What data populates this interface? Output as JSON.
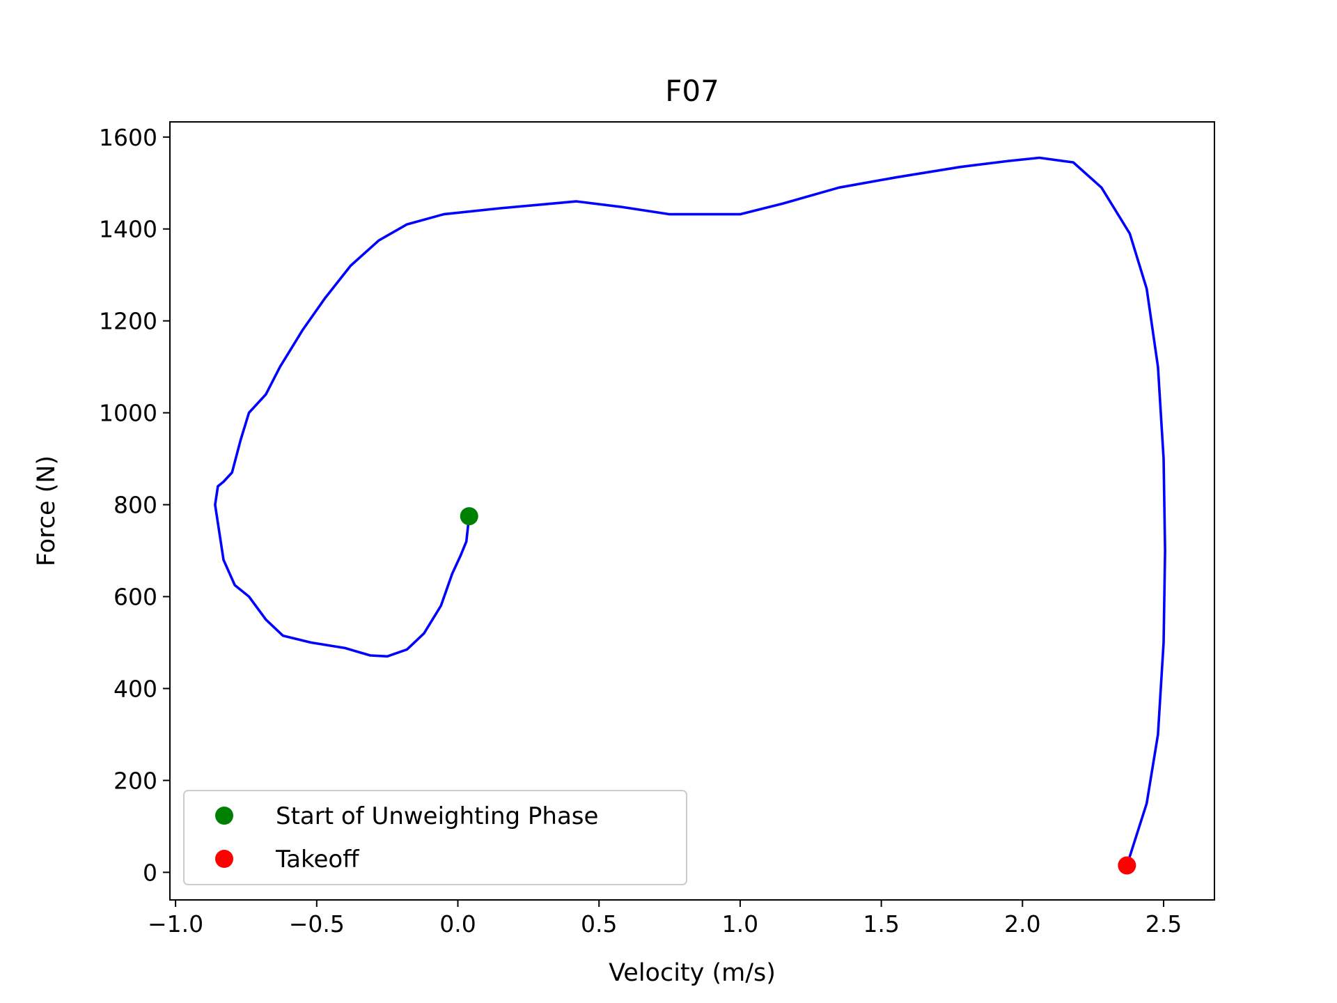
{
  "chart_data": {
    "type": "line",
    "title": "F07",
    "xlabel": "Velocity (m/s)",
    "ylabel": "Force (N)",
    "xlim": [
      -1.02,
      2.68
    ],
    "ylim": [
      -60,
      1633
    ],
    "xticks": [
      -1.0,
      -0.5,
      0.0,
      0.5,
      1.0,
      1.5,
      2.0,
      2.5
    ],
    "xtick_labels": [
      "−1.0",
      "−0.5",
      "0.0",
      "0.5",
      "1.0",
      "1.5",
      "2.0",
      "2.5"
    ],
    "yticks": [
      0,
      200,
      400,
      600,
      800,
      1000,
      1200,
      1400,
      1600
    ],
    "ytick_labels": [
      "0",
      "200",
      "400",
      "600",
      "800",
      "1000",
      "1200",
      "1400",
      "1600"
    ],
    "grid": false,
    "legend_position": "lower left",
    "series": [
      {
        "color": "#0000ff",
        "points": [
          [
            0.04,
            775
          ],
          [
            0.03,
            720
          ],
          [
            0.01,
            690
          ],
          [
            -0.02,
            650
          ],
          [
            -0.06,
            580
          ],
          [
            -0.12,
            520
          ],
          [
            -0.18,
            485
          ],
          [
            -0.25,
            470
          ],
          [
            -0.31,
            472
          ],
          [
            -0.4,
            488
          ],
          [
            -0.52,
            500
          ],
          [
            -0.62,
            515
          ],
          [
            -0.68,
            550
          ],
          [
            -0.74,
            600
          ],
          [
            -0.79,
            625
          ],
          [
            -0.83,
            680
          ],
          [
            -0.855,
            780
          ],
          [
            -0.86,
            800
          ],
          [
            -0.85,
            840
          ],
          [
            -0.83,
            850
          ],
          [
            -0.8,
            870
          ],
          [
            -0.77,
            940
          ],
          [
            -0.74,
            1000
          ],
          [
            -0.68,
            1040
          ],
          [
            -0.63,
            1100
          ],
          [
            -0.55,
            1180
          ],
          [
            -0.47,
            1250
          ],
          [
            -0.38,
            1320
          ],
          [
            -0.28,
            1375
          ],
          [
            -0.18,
            1410
          ],
          [
            -0.05,
            1432
          ],
          [
            0.15,
            1445
          ],
          [
            0.42,
            1460
          ],
          [
            0.58,
            1448
          ],
          [
            0.75,
            1432
          ],
          [
            1.0,
            1432
          ],
          [
            1.15,
            1455
          ],
          [
            1.35,
            1490
          ],
          [
            1.55,
            1512
          ],
          [
            1.78,
            1535
          ],
          [
            1.95,
            1548
          ],
          [
            2.06,
            1555
          ],
          [
            2.18,
            1545
          ],
          [
            2.28,
            1490
          ],
          [
            2.38,
            1390
          ],
          [
            2.44,
            1270
          ],
          [
            2.48,
            1100
          ],
          [
            2.5,
            900
          ],
          [
            2.505,
            700
          ],
          [
            2.5,
            500
          ],
          [
            2.48,
            300
          ],
          [
            2.44,
            150
          ],
          [
            2.37,
            15
          ]
        ]
      }
    ],
    "markers": [
      {
        "name": "Start of Unweighting Phase",
        "x": 0.04,
        "y": 775,
        "color": "#008000"
      },
      {
        "name": "Takeoff",
        "x": 2.37,
        "y": 15,
        "color": "#ff0000"
      }
    ]
  }
}
